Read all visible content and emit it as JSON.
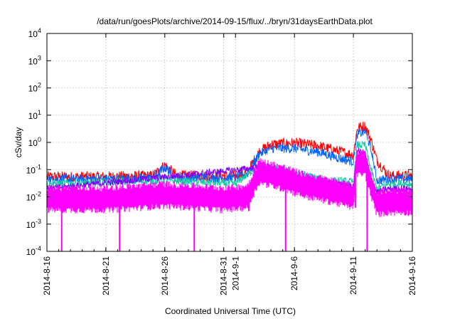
{
  "chart_data": {
    "type": "line",
    "title": "/data/run/goesPlots/archive/2014-09-15/flux/../bryn/31daysEarthData.plot",
    "xlabel": "Coordinated Universal Time (UTC)",
    "ylabel": "cSv/day",
    "yscale": "log",
    "ylim": [
      0.0001,
      10000
    ],
    "xlim": [
      "2014-08-16",
      "2014-09-16"
    ],
    "grid": true,
    "y_ticks": [
      {
        "base": "10",
        "exp": "-4",
        "value": 0.0001
      },
      {
        "base": "10",
        "exp": "-3",
        "value": 0.001
      },
      {
        "base": "10",
        "exp": "-2",
        "value": 0.01
      },
      {
        "base": "10",
        "exp": "-1",
        "value": 0.1
      },
      {
        "base": "10",
        "exp": "0",
        "value": 1
      },
      {
        "base": "10",
        "exp": "1",
        "value": 10
      },
      {
        "base": "10",
        "exp": "2",
        "value": 100
      },
      {
        "base": "10",
        "exp": "3",
        "value": 1000
      },
      {
        "base": "10",
        "exp": "4",
        "value": 10000
      }
    ],
    "x_ticks": [
      {
        "label": "2014-8-16",
        "date": "2014-08-16"
      },
      {
        "label": "2014-8-21",
        "date": "2014-08-21"
      },
      {
        "label": "2014-8-26",
        "date": "2014-08-26"
      },
      {
        "label": "2014-8-31",
        "date": "2014-08-31"
      },
      {
        "label": "2014-9-1",
        "date": "2014-09-01"
      },
      {
        "label": "2014-9-6",
        "date": "2014-09-06"
      },
      {
        "label": "2014-9-11",
        "date": "2014-09-11"
      },
      {
        "label": "2014-9-16",
        "date": "2014-09-16"
      }
    ],
    "series": [
      {
        "color": "#ff0000",
        "noise": 0.2,
        "points": [
          [
            "2014-08-16",
            0.055
          ],
          [
            "2014-08-21",
            0.055
          ],
          [
            "2014-08-25",
            0.06
          ],
          [
            "2014-08-26",
            0.15
          ],
          [
            "2014-08-27",
            0.06
          ],
          [
            "2014-09-01",
            0.06
          ],
          [
            "2014-09-02",
            0.08
          ],
          [
            "2014-09-03",
            0.45
          ],
          [
            "2014-09-04",
            0.85
          ],
          [
            "2014-09-06",
            0.95
          ],
          [
            "2014-09-08",
            0.75
          ],
          [
            "2014-09-10",
            0.45
          ],
          [
            "2014-09-11",
            0.35
          ],
          [
            "2014-09-11T08:00",
            3.5
          ],
          [
            "2014-09-12",
            4.0
          ],
          [
            "2014-09-12T12:00",
            1.2
          ],
          [
            "2014-09-13",
            0.22
          ],
          [
            "2014-09-14",
            0.06
          ],
          [
            "2014-09-16",
            0.06
          ]
        ]
      },
      {
        "color": "#0064ff",
        "noise": 0.18,
        "points": [
          [
            "2014-08-16",
            0.045
          ],
          [
            "2014-08-21",
            0.045
          ],
          [
            "2014-08-25",
            0.05
          ],
          [
            "2014-08-26",
            0.12
          ],
          [
            "2014-08-27",
            0.05
          ],
          [
            "2014-09-01",
            0.05
          ],
          [
            "2014-09-02",
            0.07
          ],
          [
            "2014-09-03",
            0.35
          ],
          [
            "2014-09-04",
            0.6
          ],
          [
            "2014-09-06",
            0.6
          ],
          [
            "2014-09-08",
            0.45
          ],
          [
            "2014-09-10",
            0.25
          ],
          [
            "2014-09-11",
            0.2
          ],
          [
            "2014-09-11T08:00",
            2.0
          ],
          [
            "2014-09-12",
            2.5
          ],
          [
            "2014-09-12T12:00",
            0.5
          ],
          [
            "2014-09-13",
            0.04
          ],
          [
            "2014-09-14",
            0.045
          ],
          [
            "2014-09-16",
            0.045
          ]
        ]
      },
      {
        "color": "#ffffff",
        "noise": 0.15,
        "points": [
          [
            "2014-09-03",
            0.3
          ],
          [
            "2014-09-05",
            0.28
          ],
          [
            "2014-09-07",
            0.2
          ],
          [
            "2014-09-09",
            0.12
          ],
          [
            "2014-09-10",
            0.08
          ],
          [
            "2014-09-11",
            0.08
          ],
          [
            "2014-09-11T08:00",
            1.3
          ],
          [
            "2014-09-12",
            1.5
          ],
          [
            "2014-09-12T12:00",
            0.3
          ],
          [
            "2014-09-13",
            0.025
          ],
          [
            "2014-09-13T18:00",
            0.025
          ]
        ]
      },
      {
        "color": "#1fc8a0",
        "noise": 0.15,
        "points": [
          [
            "2014-08-16",
            0.03
          ],
          [
            "2014-08-26",
            0.04
          ],
          [
            "2014-09-01",
            0.03
          ],
          [
            "2014-09-03",
            0.15
          ],
          [
            "2014-09-05",
            0.1
          ],
          [
            "2014-09-07",
            0.06
          ],
          [
            "2014-09-09",
            0.04
          ],
          [
            "2014-09-11",
            0.035
          ],
          [
            "2014-09-11T08:00",
            0.8
          ],
          [
            "2014-09-12",
            0.8
          ],
          [
            "2014-09-12T12:00",
            0.1
          ],
          [
            "2014-09-13",
            0.02
          ],
          [
            "2014-09-14",
            0.03
          ],
          [
            "2014-09-16",
            0.03
          ]
        ]
      },
      {
        "color": "#8000ff",
        "noise": 0.12,
        "points": [
          [
            "2014-08-16",
            0.02
          ],
          [
            "2014-09-03",
            0.12
          ],
          [
            "2014-09-06",
            0.05
          ],
          [
            "2014-09-11",
            0.025
          ],
          [
            "2014-09-11T08:00",
            0.5
          ],
          [
            "2014-09-12",
            0.4
          ],
          [
            "2014-09-12T12:00",
            0.05
          ],
          [
            "2014-09-13",
            0.015
          ],
          [
            "2014-09-14",
            0.02
          ],
          [
            "2014-09-16",
            0.02
          ]
        ]
      },
      {
        "color": "#ff00ff",
        "band": [
          0.0035,
          0.02
        ],
        "points": [
          [
            "2014-08-16",
            0.01
          ],
          [
            "2014-08-21",
            0.01
          ],
          [
            "2014-08-26",
            0.014
          ],
          [
            "2014-08-31",
            0.01
          ],
          [
            "2014-09-02",
            0.012
          ],
          [
            "2014-09-03",
            0.1
          ],
          [
            "2014-09-05",
            0.06
          ],
          [
            "2014-09-07",
            0.03
          ],
          [
            "2014-09-09",
            0.02
          ],
          [
            "2014-09-11",
            0.012
          ],
          [
            "2014-09-11T06:00",
            0.2
          ],
          [
            "2014-09-12",
            0.2
          ],
          [
            "2014-09-12T12:00",
            0.03
          ],
          [
            "2014-09-13",
            0.007
          ],
          [
            "2014-09-14",
            0.008
          ],
          [
            "2014-09-16",
            0.008
          ]
        ],
        "spikes": [
          [
            "2014-08-17T06:00",
            0.0001
          ],
          [
            "2014-08-22T04:00",
            0.0001
          ],
          [
            "2014-08-28T12:00",
            0.0001
          ],
          [
            "2014-09-02T03:00",
            0.003
          ],
          [
            "2014-09-05T06:00",
            0.0001
          ],
          [
            "2014-09-11T04:00",
            0.004
          ],
          [
            "2014-09-12T04:00",
            0.0001
          ]
        ]
      }
    ]
  }
}
